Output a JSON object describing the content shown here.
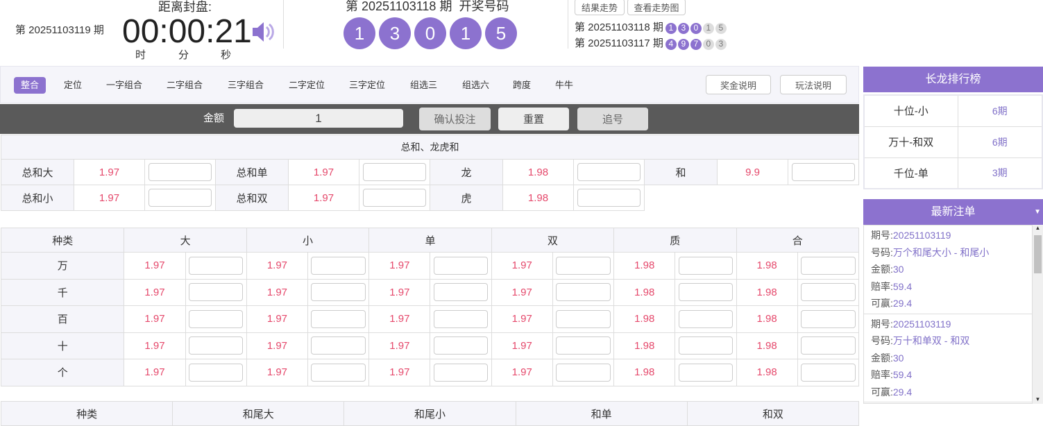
{
  "header": {
    "current_issue": "第 20251103119 期",
    "countdown_label": "距离封盘:",
    "countdown": "00:00:21",
    "units": [
      "时",
      "分",
      "秒"
    ],
    "last_title": "第 20251103118 期  开奖号码",
    "last_balls": [
      "1",
      "3",
      "0",
      "1",
      "5"
    ],
    "trend_buttons": [
      "结果走势",
      "查看走势图"
    ],
    "history": [
      {
        "issue": "第 20251103118 期",
        "balls": [
          "1",
          "3",
          "0",
          "1",
          "5"
        ]
      },
      {
        "issue": "第 20251103117 期",
        "balls": [
          "4",
          "9",
          "7",
          "0",
          "3"
        ]
      }
    ]
  },
  "tabs": [
    "整合",
    "定位",
    "一字组合",
    "二字组合",
    "三字组合",
    "二字定位",
    "三字定位",
    "组选三",
    "组选六",
    "跨度",
    "牛牛"
  ],
  "tab_buttons": [
    "奖金说明",
    "玩法说明"
  ],
  "amount_bar": {
    "label": "金额",
    "value": "1",
    "confirm": "确认投注",
    "reset": "重置",
    "chase": "追号"
  },
  "sum_section": {
    "title": "总和、龙虎和",
    "rows": [
      [
        {
          "label": "总和大",
          "odds": "1.97"
        },
        {
          "label": "总和单",
          "odds": "1.97"
        },
        {
          "label": "龙",
          "odds": "1.98"
        },
        {
          "label": "和",
          "odds": "9.9"
        }
      ],
      [
        {
          "label": "总和小",
          "odds": "1.97"
        },
        {
          "label": "总和双",
          "odds": "1.97"
        },
        {
          "label": "虎",
          "odds": "1.98"
        }
      ]
    ]
  },
  "position_table": {
    "headers": [
      "种类",
      "大",
      "小",
      "单",
      "双",
      "质",
      "合"
    ],
    "rows": [
      {
        "name": "万",
        "odds": [
          "1.97",
          "1.97",
          "1.97",
          "1.97",
          "1.98",
          "1.98"
        ]
      },
      {
        "name": "千",
        "odds": [
          "1.97",
          "1.97",
          "1.97",
          "1.97",
          "1.98",
          "1.98"
        ]
      },
      {
        "name": "百",
        "odds": [
          "1.97",
          "1.97",
          "1.97",
          "1.97",
          "1.98",
          "1.98"
        ]
      },
      {
        "name": "十",
        "odds": [
          "1.97",
          "1.97",
          "1.97",
          "1.97",
          "1.98",
          "1.98"
        ]
      },
      {
        "name": "个",
        "odds": [
          "1.97",
          "1.97",
          "1.97",
          "1.97",
          "1.98",
          "1.98"
        ]
      }
    ]
  },
  "tail_table": {
    "headers": [
      "种类",
      "和尾大",
      "和尾小",
      "和单",
      "和双"
    ]
  },
  "dragon": {
    "title": "长龙排行榜",
    "rows": [
      {
        "name": "十位-小",
        "value": "6期"
      },
      {
        "name": "万十-和双",
        "value": "6期"
      },
      {
        "name": "千位-单",
        "value": "3期"
      }
    ]
  },
  "latest": {
    "title": "最新注单",
    "keys": [
      "期号:",
      "号码:",
      "金额:",
      "赔率:",
      "可赢:"
    ],
    "bets": [
      {
        "values": [
          "20251103119",
          "万个和尾大小 - 和尾小",
          "30",
          "59.4",
          "29.4"
        ]
      },
      {
        "values": [
          "20251103119",
          "万十和单双 - 和双",
          "30",
          "59.4",
          "29.4"
        ]
      }
    ]
  },
  "colors": {
    "accent": "#8c72cf",
    "odds": "#e5486b"
  }
}
